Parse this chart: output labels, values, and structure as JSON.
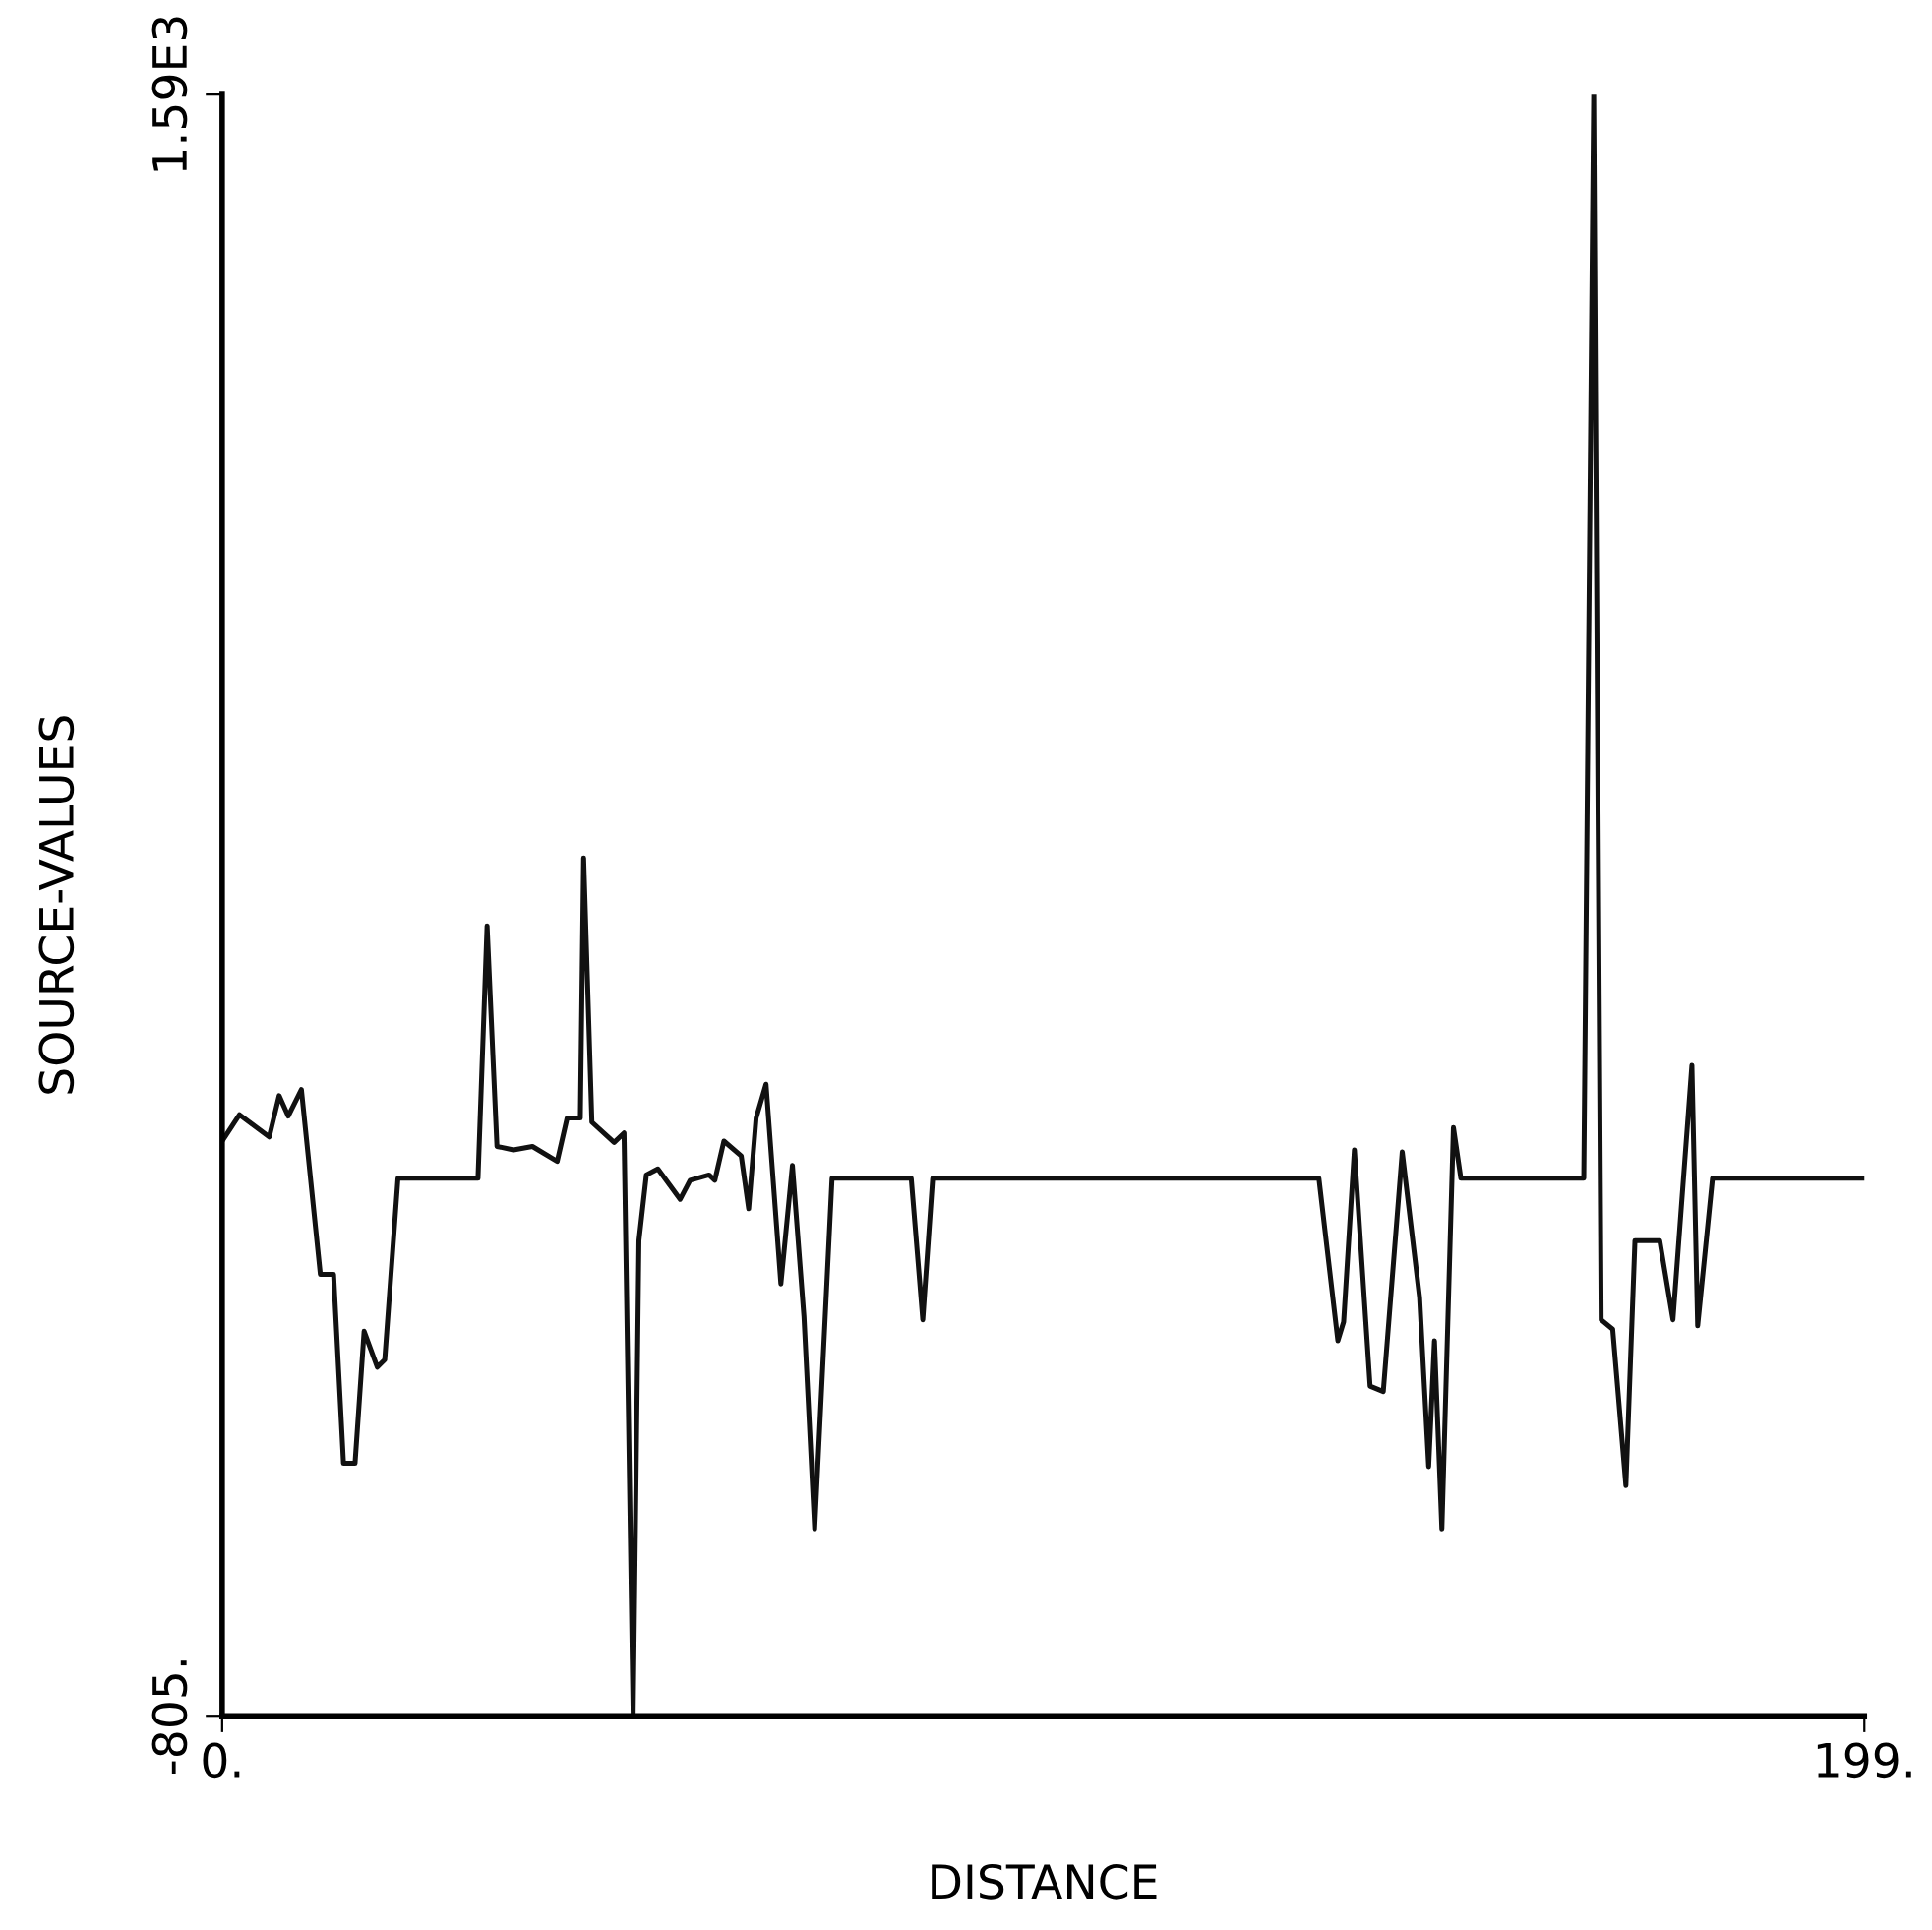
{
  "chart_data": {
    "type": "line",
    "xlabel": "DISTANCE",
    "ylabel": "SOURCE-VALUES",
    "xlim": [
      0,
      199
    ],
    "ylim": [
      -805,
      1590
    ],
    "xticks": [
      {
        "value": 0,
        "label": "0."
      },
      {
        "value": 199,
        "label": "199."
      }
    ],
    "yticks": [
      {
        "value": -805,
        "label": "-805."
      },
      {
        "value": 1590,
        "label": "1.59E3"
      }
    ],
    "grid": false,
    "legend": false,
    "marker": "none",
    "line_style": "solid",
    "series": [
      {
        "color": "#111111",
        "x": [
          0,
          2.1,
          5.7,
          6.9,
          8.0,
          9.6,
          11.9,
          13.5,
          14.7,
          16.1,
          17.2,
          18.8,
          19.7,
          21.3,
          31.0,
          32.1,
          33.3,
          35.3,
          37.6,
          40.6,
          41.8,
          43.4,
          43.8,
          44.8,
          47.5,
          48.7,
          49.8,
          50.5,
          51.4,
          52.8,
          55.5,
          56.7,
          59.0,
          59.7,
          60.8,
          62.9,
          63.8,
          64.7,
          65.9,
          67.7,
          69.1,
          70.5,
          71.8,
          73.9,
          83.5,
          84.9,
          86.1,
          132.9,
          135.2,
          135.9,
          137.2,
          139.1,
          140.7,
          143.0,
          145.1,
          146.2,
          146.9,
          147.8,
          149.2,
          150.1,
          165.0,
          166.2,
          167.1,
          168.5,
          170.1,
          171.2,
          174.2,
          175.8,
          178.1,
          178.8,
          180.6,
          199
        ],
        "values": [
          44,
          83,
          50,
          111,
          81,
          120,
          -153,
          -153,
          -432,
          -432,
          -237,
          -290,
          -279,
          -11,
          -11,
          362,
          36,
          31,
          36,
          14,
          78,
          78,
          462,
          72,
          42,
          56,
          -805,
          -103,
          -6,
          3,
          -42,
          -14,
          -6,
          -14,
          44,
          22,
          -56,
          78,
          128,
          -167,
          8,
          -215,
          -529,
          -11,
          -11,
          -220,
          -11,
          -11,
          -251,
          -223,
          31,
          -318,
          -326,
          28,
          -187,
          -437,
          -251,
          -529,
          64,
          -11,
          -11,
          1590,
          -220,
          -234,
          -465,
          -103,
          -103,
          -220,
          156,
          -229,
          -11,
          -11
        ]
      }
    ]
  }
}
